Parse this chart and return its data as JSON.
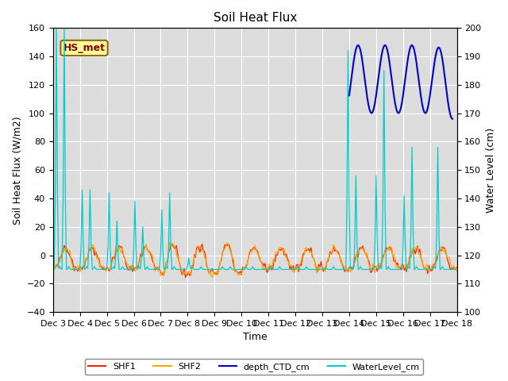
{
  "title": "Soil Heat Flux",
  "ylabel_left": "Soil Heat Flux (W/m2)",
  "ylabel_right": "Water Level (cm)",
  "xlabel": "Time",
  "ylim_left": [
    -40,
    160
  ],
  "ylim_right": [
    100,
    200
  ],
  "background_color": "#dcdcdc",
  "legend_label": "HS_met",
  "legend_box_facecolor": "#ffff99",
  "legend_box_edgecolor": "#8b6914",
  "legend_text_color": "#8b0000",
  "series_colors": {
    "SHF1": "#ff2200",
    "SHF2": "#ffa500",
    "depth_CTD_cm": "#0000cc",
    "WaterLevel_cm": "#00cccc"
  },
  "x_tick_labels": [
    "Dec 3",
    "Dec 4",
    "Dec 5",
    "Dec 6",
    "Dec 7",
    "Dec 8",
    "Dec 9",
    "Dec 10",
    "Dec 11",
    "Dec 12",
    "Dec 13",
    "Dec 14",
    "Dec 15",
    "Dec 16",
    "Dec 17",
    "Dec 18"
  ],
  "x_tick_positions": [
    0,
    24,
    48,
    72,
    96,
    120,
    144,
    168,
    192,
    216,
    240,
    264,
    288,
    312,
    336,
    360
  ],
  "yticks_left": [
    -40,
    -20,
    0,
    20,
    40,
    60,
    80,
    100,
    120,
    140,
    160
  ],
  "yticks_right": [
    100,
    110,
    120,
    130,
    140,
    150,
    160,
    170,
    180,
    190,
    200
  ]
}
